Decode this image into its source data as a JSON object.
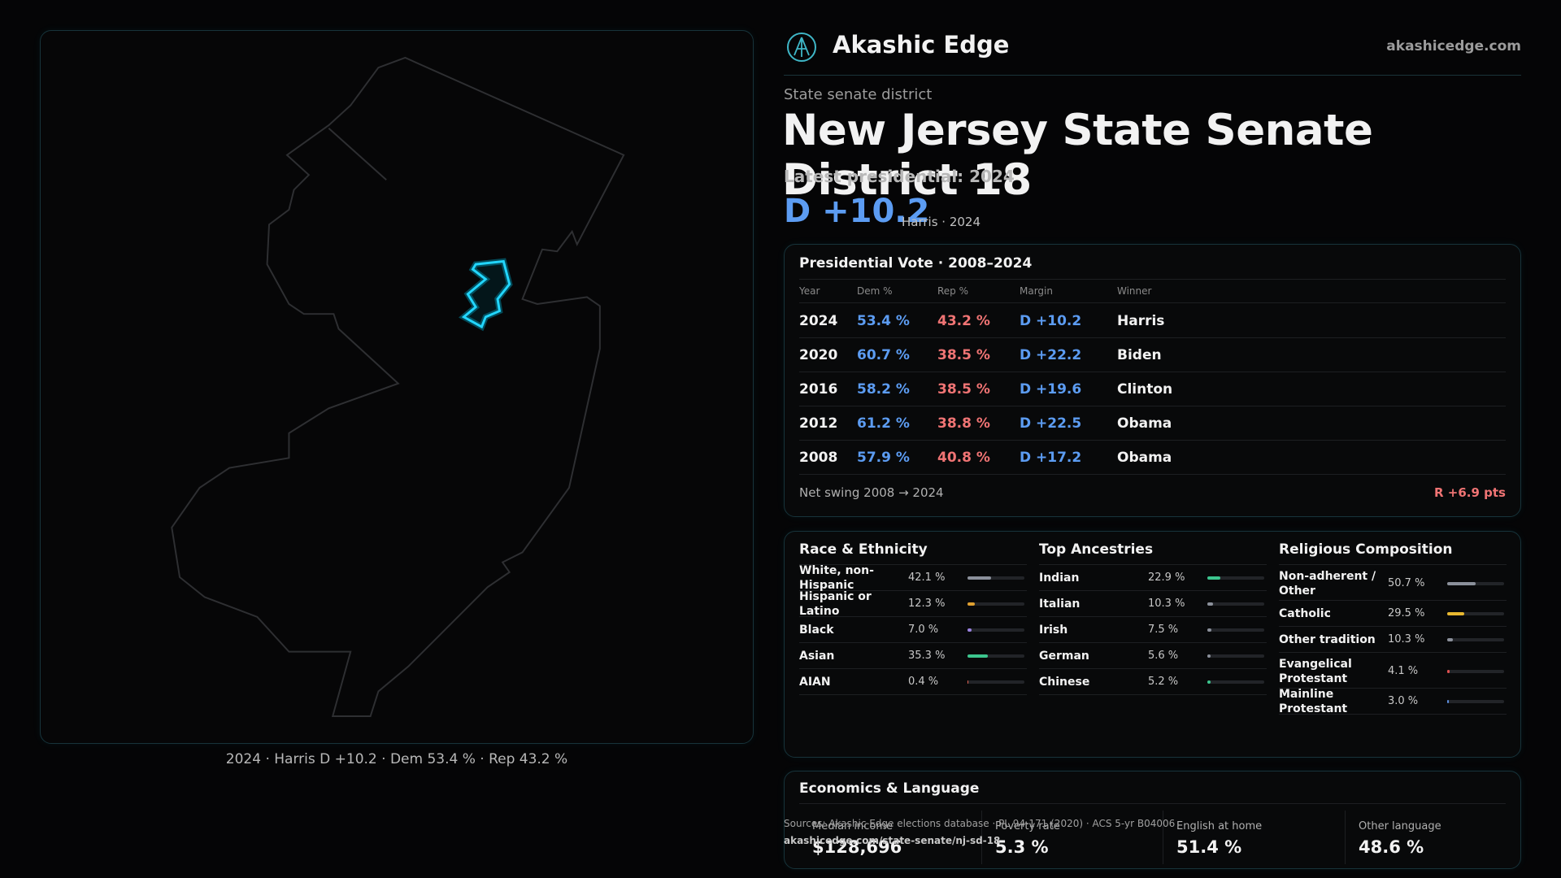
{
  "header": {
    "brand": "Akashic Edge",
    "url": "akashicedge.com"
  },
  "district": {
    "kind": "State senate district",
    "title": "New Jersey State Senate District 18",
    "latest_label": "Latest presidential: 2024",
    "margin": "D +10.2",
    "margin_note": "Harris · 2024"
  },
  "map": {
    "caption": "2024 · Harris D +10.2 · Dem 53.4 % · Rep 43.2 %"
  },
  "presidential": {
    "title": "Presidential Vote · 2008–2024",
    "columns": [
      "Year",
      "Dem %",
      "Rep %",
      "Margin",
      "Winner"
    ],
    "rows": [
      [
        "2024",
        "53.4 %",
        "43.2 %",
        "D +10.2",
        "Harris"
      ],
      [
        "2020",
        "60.7 %",
        "38.5 %",
        "D +22.2",
        "Biden"
      ],
      [
        "2016",
        "58.2 %",
        "38.5 %",
        "D +19.6",
        "Clinton"
      ],
      [
        "2012",
        "61.2 %",
        "38.8 %",
        "D +22.5",
        "Obama"
      ],
      [
        "2008",
        "57.9 %",
        "40.8 %",
        "D +17.2",
        "Obama"
      ]
    ],
    "swing_label": "Net swing 2008 → 2024",
    "swing": "R +6.9 pts"
  },
  "race": {
    "title": "Race & Ethnicity",
    "items": [
      {
        "label": "White, non-Hispanic",
        "value": 42.1,
        "value_label": "42.1 %",
        "color": "#8b909b"
      },
      {
        "label": "Hispanic or Latino",
        "value": 12.3,
        "value_label": "12.3 %",
        "color": "#e0a030"
      },
      {
        "label": "Black",
        "value": 7.0,
        "value_label": "7.0 %",
        "color": "#9a82e0"
      },
      {
        "label": "Asian",
        "value": 35.3,
        "value_label": "35.3 %",
        "color": "#3cc58e"
      },
      {
        "label": "AIAN",
        "value": 0.4,
        "value_label": "0.4 %",
        "color": "#e06050"
      }
    ]
  },
  "ancestries": {
    "title": "Top Ancestries",
    "items": [
      {
        "label": "Indian",
        "value": 22.9,
        "value_label": "22.9 %",
        "color": "#3cc58e"
      },
      {
        "label": "Italian",
        "value": 10.3,
        "value_label": "10.3 %",
        "color": "#8b909b"
      },
      {
        "label": "Irish",
        "value": 7.5,
        "value_label": "7.5 %",
        "color": "#8b909b"
      },
      {
        "label": "German",
        "value": 5.6,
        "value_label": "5.6 %",
        "color": "#8b909b"
      },
      {
        "label": "Chinese",
        "value": 5.2,
        "value_label": "5.2 %",
        "color": "#3cc58e"
      }
    ]
  },
  "religion": {
    "title": "Religious Composition",
    "items": [
      {
        "label": "Non-adherent / Other",
        "value": 50.7,
        "value_label": "50.7 %",
        "color": "#8b909b"
      },
      {
        "label": "Catholic",
        "value": 29.5,
        "value_label": "29.5 %",
        "color": "#e8b830"
      },
      {
        "label": "Other tradition",
        "value": 10.3,
        "value_label": "10.3 %",
        "color": "#8b909b"
      },
      {
        "label": "Evangelical Protestant",
        "value": 4.1,
        "value_label": "4.1 %",
        "color": "#e05050"
      },
      {
        "label": "Mainline Protestant",
        "value": 3.0,
        "value_label": "3.0 %",
        "color": "#5b8ee0"
      }
    ]
  },
  "economics": {
    "title": "Economics & Language",
    "items": [
      {
        "label": "Median income",
        "value": "$128,696"
      },
      {
        "label": "Poverty rate",
        "value": "5.3 %"
      },
      {
        "label": "English at home",
        "value": "51.4 %"
      },
      {
        "label": "Other language",
        "value": "48.6 %"
      }
    ]
  },
  "footer": {
    "sources": "Sources: Akashic Edge elections database · PL 94-171 (2020) · ACS 5-yr B04006",
    "link": "akashicedge.com/state-senate/nj-sd-18"
  }
}
